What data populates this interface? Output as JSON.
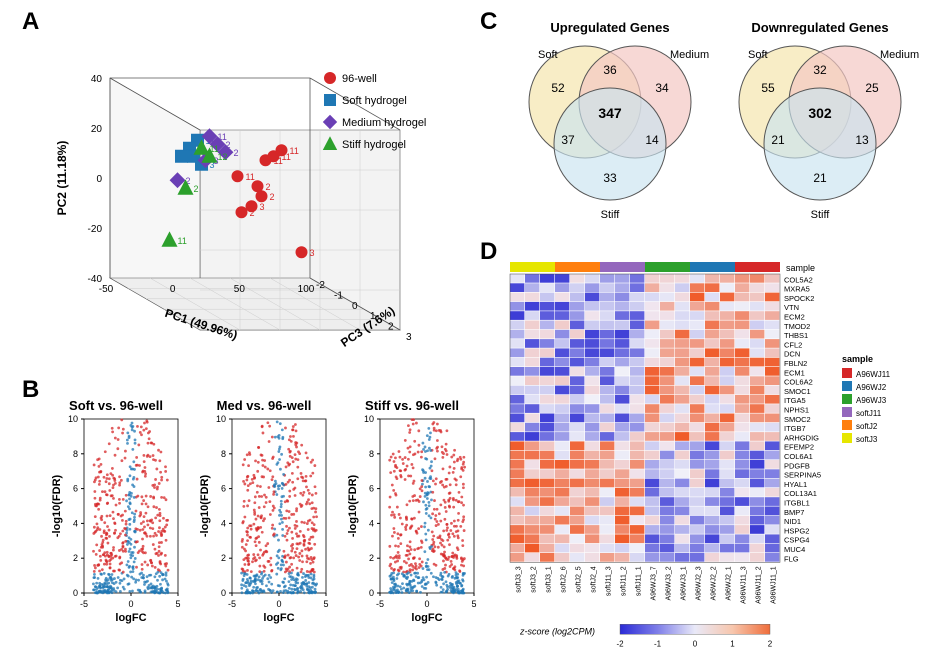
{
  "panelLabels": {
    "A": "A",
    "B": "B",
    "C": "C",
    "D": "D"
  },
  "A": {
    "axes": {
      "pc1": "PC1 (49.96%)",
      "pc2": "PC2 (11.18%)",
      "pc3": "PC3 (7.6%)"
    },
    "legend": [
      {
        "label": "96-well",
        "color": "#d62728",
        "shape": "circle"
      },
      {
        "label": "Soft hydrogel",
        "color": "#1f77b4",
        "shape": "square"
      },
      {
        "label": "Medium hydrogel",
        "color": "#6a3fb5",
        "shape": "diamond"
      },
      {
        "label": "Stiff hydrogel",
        "color": "#2ca02c",
        "shape": "triangle"
      }
    ],
    "pc1_ticks": [
      -50,
      0,
      50,
      100
    ],
    "pc2_ticks": [
      -40,
      -20,
      0,
      20,
      40
    ],
    "pc3_ticks": [
      -2,
      -1,
      0,
      1,
      2,
      3
    ],
    "points": [
      {
        "x": 0.62,
        "y": 0.32,
        "shape": "circle",
        "color": "#d62728",
        "txt": "11"
      },
      {
        "x": 0.66,
        "y": 0.3,
        "shape": "circle",
        "color": "#d62728",
        "txt": "11"
      },
      {
        "x": 0.7,
        "y": 0.27,
        "shape": "circle",
        "color": "#d62728",
        "txt": "11"
      },
      {
        "x": 0.58,
        "y": 0.45,
        "shape": "circle",
        "color": "#d62728",
        "txt": "2"
      },
      {
        "x": 0.6,
        "y": 0.5,
        "shape": "circle",
        "color": "#d62728",
        "txt": "2"
      },
      {
        "x": 0.55,
        "y": 0.55,
        "shape": "circle",
        "color": "#d62728",
        "txt": "3"
      },
      {
        "x": 0.5,
        "y": 0.58,
        "shape": "circle",
        "color": "#d62728",
        "txt": "2"
      },
      {
        "x": 0.48,
        "y": 0.4,
        "shape": "circle",
        "color": "#d62728",
        "txt": "11"
      },
      {
        "x": 0.8,
        "y": 0.78,
        "shape": "circle",
        "color": "#d62728",
        "txt": "3"
      },
      {
        "x": 0.28,
        "y": 0.22,
        "shape": "square",
        "color": "#1f77b4",
        "txt": "11"
      },
      {
        "x": 0.24,
        "y": 0.26,
        "shape": "square",
        "color": "#1f77b4",
        "txt": "11"
      },
      {
        "x": 0.26,
        "y": 0.3,
        "shape": "square",
        "color": "#1f77b4",
        "txt": "11"
      },
      {
        "x": 0.3,
        "y": 0.34,
        "shape": "square",
        "color": "#1f77b4",
        "txt": "3"
      },
      {
        "x": 0.2,
        "y": 0.3,
        "shape": "square",
        "color": "#1f77b4",
        "txt": "11"
      },
      {
        "x": 0.34,
        "y": 0.2,
        "shape": "diamond",
        "color": "#6a3fb5",
        "txt": "11"
      },
      {
        "x": 0.38,
        "y": 0.24,
        "shape": "diamond",
        "color": "#6a3fb5",
        "txt": "2"
      },
      {
        "x": 0.42,
        "y": 0.28,
        "shape": "diamond",
        "color": "#6a3fb5",
        "txt": "2"
      },
      {
        "x": 0.32,
        "y": 0.32,
        "shape": "diamond",
        "color": "#6a3fb5",
        "txt": "3"
      },
      {
        "x": 0.18,
        "y": 0.42,
        "shape": "diamond",
        "color": "#6a3fb5",
        "txt": "2"
      },
      {
        "x": 0.3,
        "y": 0.26,
        "shape": "triangle",
        "color": "#2ca02c",
        "txt": "11"
      },
      {
        "x": 0.34,
        "y": 0.3,
        "shape": "triangle",
        "color": "#2ca02c",
        "txt": "12"
      },
      {
        "x": 0.22,
        "y": 0.46,
        "shape": "triangle",
        "color": "#2ca02c",
        "txt": "2"
      },
      {
        "x": 0.14,
        "y": 0.72,
        "shape": "triangle",
        "color": "#2ca02c",
        "txt": "11"
      }
    ]
  },
  "B": {
    "xlabel": "logFC",
    "ylabel": "-log10(FDR)",
    "ymax": 10,
    "xlim": [
      -5,
      5
    ],
    "yticks": [
      0,
      2,
      4,
      6,
      8,
      10
    ],
    "xticks": [
      -5,
      0,
      5
    ],
    "panels": [
      {
        "title": "Soft vs. 96-well"
      },
      {
        "title": "Med vs. 96-well"
      },
      {
        "title": "Stiff vs. 96-well"
      }
    ],
    "colors": {
      "sig": "#d62728",
      "nonsig": "#1f77b4"
    }
  },
  "C": {
    "colors": {
      "soft": "#f6e7b3",
      "medium": "#f4c7c3",
      "stiff": "#c9e3f0",
      "stroke": "#555"
    },
    "panels": [
      {
        "title": "Upregulated Genes",
        "labels": {
          "a": "52",
          "b": "36",
          "ab": "34",
          "c": "37",
          "abc": "347",
          "bc": "14",
          "cOnly": "33",
          "lA": "Soft",
          "lB": "Medium",
          "lC": "Stiff"
        }
      },
      {
        "title": "Downregulated Genes",
        "labels": {
          "a": "55",
          "b": "32",
          "ab": "25",
          "c": "21",
          "abc": "302",
          "bc": "13",
          "cOnly": "21",
          "lA": "Soft",
          "lB": "Medium",
          "lC": "Stiff"
        }
      }
    ]
  },
  "D": {
    "scaleLabel": "z-score (log2CPM)",
    "scaleTicks": [
      "-2",
      "-1",
      "0",
      "1",
      "2"
    ],
    "scaleColors": [
      "#2b2bd6",
      "#7e7ee8",
      "#e9e9f8",
      "#f7c6ad",
      "#ef6d3a"
    ],
    "sampleLegendTitle": "sample",
    "sampleLegend": [
      {
        "label": "A96WJ11",
        "color": "#d62728"
      },
      {
        "label": "A96WJ2",
        "color": "#1f77b4"
      },
      {
        "label": "A96WJ3",
        "color": "#2ca02c"
      },
      {
        "label": "softJ11",
        "color": "#9467bd"
      },
      {
        "label": "softJ2",
        "color": "#ff7f0e"
      },
      {
        "label": "softJ3",
        "color": "#e6e600"
      }
    ],
    "stripColors": [
      "#e6e600",
      "#ff7f0e",
      "#9467bd",
      "#2ca02c",
      "#1f77b4",
      "#d62728"
    ],
    "cols": [
      "softJ3_3",
      "softJ3_2",
      "softJ3_1",
      "softJ2_6",
      "softJ2_5",
      "softJ2_4",
      "softJ11_3",
      "softJ11_2",
      "softJ11_1",
      "A96WJ3_7",
      "A96WJ3_2",
      "A96WJ3_1",
      "A96WJ2_3",
      "A96WJ2_2",
      "A96WJ2_1",
      "A96WJ11_3",
      "A96WJ11_2",
      "A96WJ11_1"
    ],
    "rows": [
      "COL5A2",
      "MXRA5",
      "SPOCK2",
      "VTN",
      "ECM2",
      "TMOD2",
      "THBS1",
      "CFL2",
      "DCN",
      "FBLN2",
      "ECM1",
      "COL6A2",
      "SMOC1",
      "ITGA5",
      "NPHS1",
      "SMOC2",
      "ITGB7",
      "ARHGDIG",
      "EFEMP2",
      "COL6A1",
      "PDGFB",
      "SERPINA5",
      "HYAL1",
      "COL13A1",
      "ITGBL1",
      "BMP7",
      "NID1",
      "HSPG2",
      "CSPG4",
      "MUC4",
      "FLG"
    ],
    "seed": 42
  }
}
